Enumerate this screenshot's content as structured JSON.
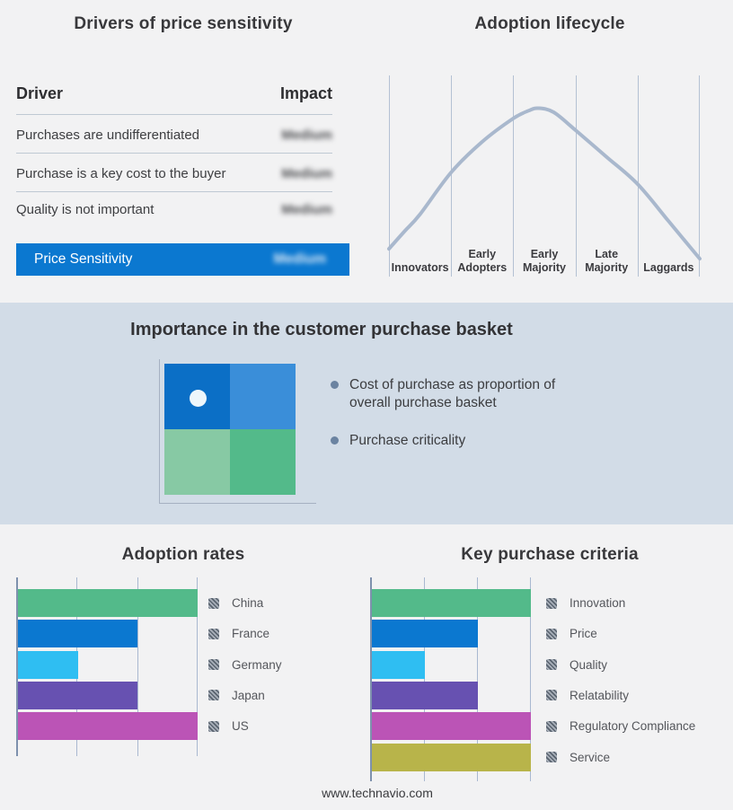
{
  "footer": {
    "website": "www.technavio.com"
  },
  "purchase_basket": {
    "title": "Importance in the customer purchase basket",
    "bullets": [
      "Cost of purchase as proportion of overall purchase basket",
      "Purchase criticality"
    ],
    "quadrant_colors": [
      "#0b6fc6",
      "#3a8ed9",
      "#87c9a4",
      "#53ba8a"
    ],
    "marker_dot_color": "#edf6fb"
  },
  "chart_data": [
    {
      "type": "table",
      "title": "Drivers of price sensitivity",
      "columns": [
        "Driver",
        "Impact"
      ],
      "rows": [
        {
          "driver": "Purchases are undifferentiated",
          "impact": "Medium"
        },
        {
          "driver": "Purchase is a key cost to the buyer",
          "impact": "Medium"
        },
        {
          "driver": "Quality is not important",
          "impact": "Medium"
        }
      ],
      "highlight_row": {
        "driver": "Price Sensitivity",
        "impact": "Medium"
      },
      "highlight_color": "#0b78d0",
      "impact_values_blurred": true
    },
    {
      "type": "line",
      "title": "Adoption lifecycle",
      "x_categories": [
        "Innovators",
        "Early Adopters",
        "Early Majority",
        "Late Majority",
        "Laggards"
      ],
      "curve_shape": "bell curve peaking near start of Early Majority",
      "curve_color": "#a9b8cd",
      "grid": "vertical category separators only",
      "y_axis": "none (qualitative)",
      "curve_points": [
        [
          0,
          0.862
        ],
        [
          0.05,
          0.775
        ],
        [
          0.1,
          0.69
        ],
        [
          0.2,
          0.482
        ],
        [
          0.3,
          0.33
        ],
        [
          0.4,
          0.214
        ],
        [
          0.45,
          0.175
        ],
        [
          0.48,
          0.163
        ],
        [
          0.53,
          0.183
        ],
        [
          0.6,
          0.272
        ],
        [
          0.7,
          0.405
        ],
        [
          0.8,
          0.54
        ],
        [
          0.9,
          0.725
        ],
        [
          1,
          0.911
        ]
      ]
    },
    {
      "type": "bar",
      "orientation": "horizontal",
      "title": "Adoption rates",
      "categories": [
        "China",
        "France",
        "Germany",
        "Japan",
        "US"
      ],
      "values": [
        3,
        2,
        1,
        2,
        3
      ],
      "xlim": [
        0,
        3
      ],
      "x_ticks_labeled": false,
      "grid": "vertical gridlines at each unit",
      "colors": [
        "#53ba8a",
        "#0b78d0",
        "#2fbef2",
        "#6751b1",
        "#bb54b6"
      ],
      "legend_position": "right",
      "legend_marker": "gray diagonal hatch swatch"
    },
    {
      "type": "bar",
      "orientation": "horizontal",
      "title": "Key purchase criteria",
      "categories": [
        "Innovation",
        "Price",
        "Quality",
        "Relatability",
        "Regulatory Compliance",
        "Service"
      ],
      "values": [
        3,
        2,
        1,
        2,
        3,
        3
      ],
      "xlim": [
        0,
        3
      ],
      "x_ticks_labeled": false,
      "grid": "vertical gridlines at each unit",
      "colors": [
        "#53ba8a",
        "#0b78d0",
        "#2fbef2",
        "#6751b1",
        "#bb54b6",
        "#b8b44a"
      ],
      "legend_position": "right",
      "legend_marker": "gray diagonal hatch swatch"
    }
  ]
}
